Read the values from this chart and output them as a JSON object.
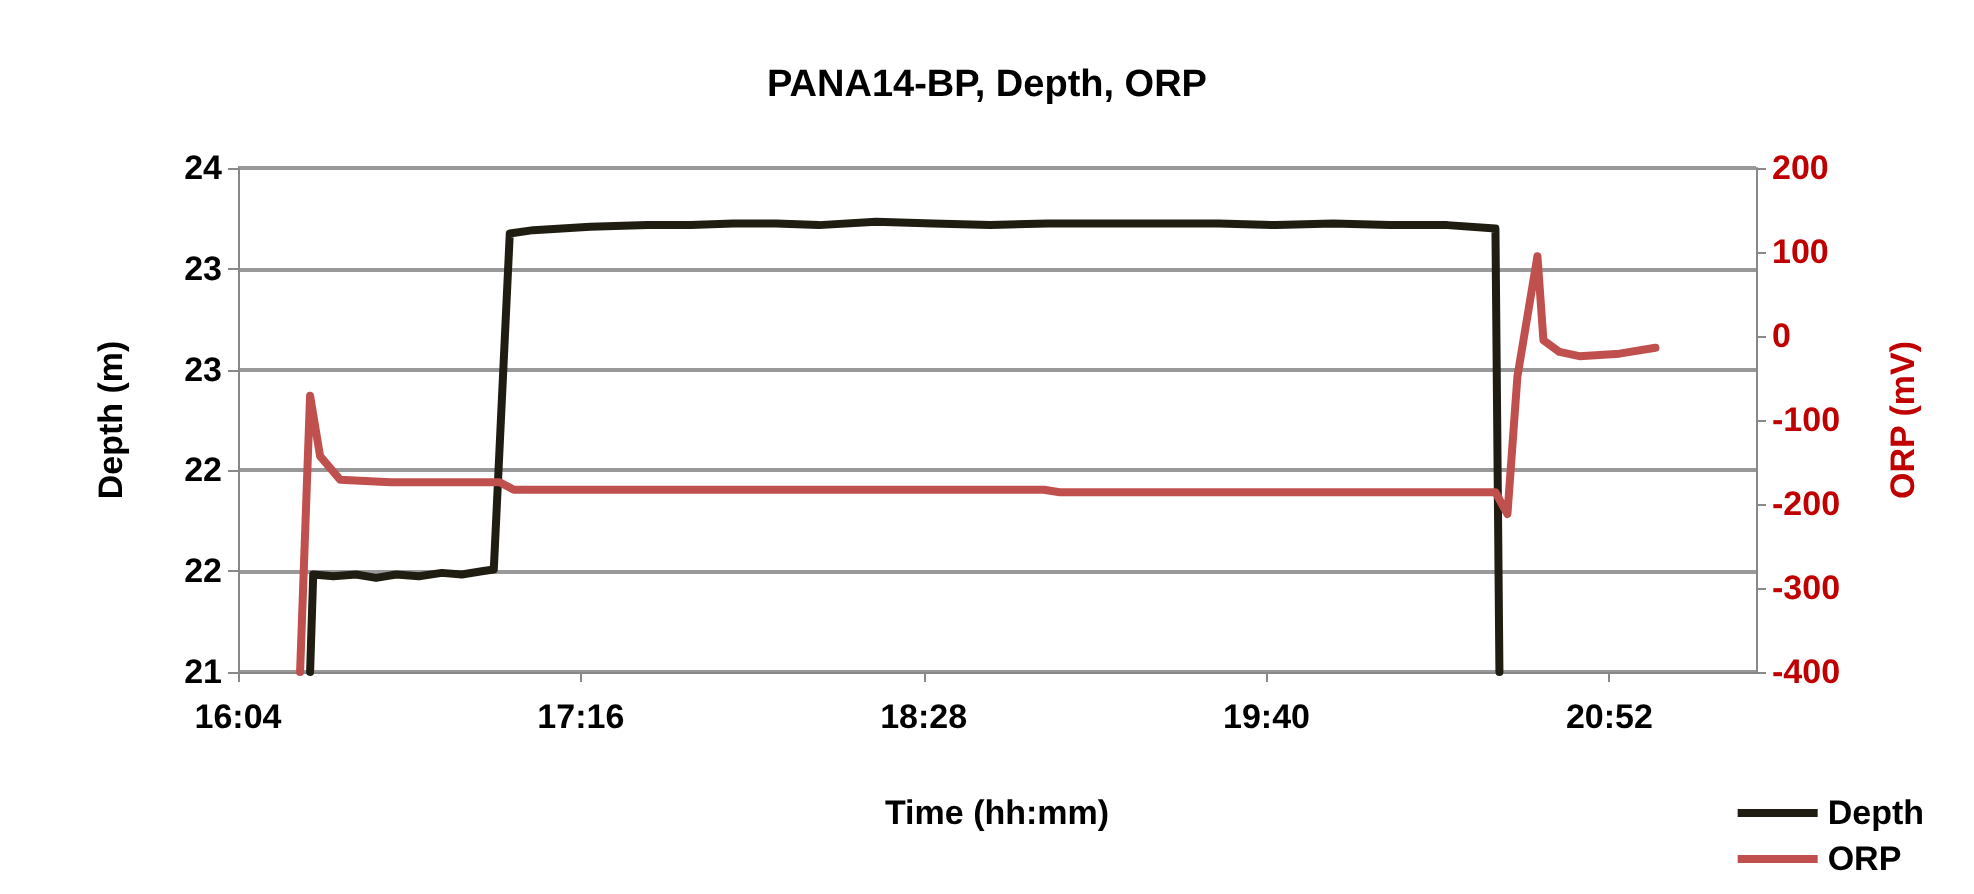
{
  "chart_data": {
    "type": "line",
    "title": "PANA14-BP, Depth, ORP",
    "xlabel": "Time (hh:mm)",
    "ylabel": "Depth (m)",
    "y2label": "ORP (mV)",
    "xlim": [
      16.0667,
      21.38
    ],
    "xticks": [
      {
        "value": 16.0667,
        "label": "16:04"
      },
      {
        "value": 17.2667,
        "label": "17:16"
      },
      {
        "value": 18.4667,
        "label": "18:28"
      },
      {
        "value": 19.6667,
        "label": "19:40"
      },
      {
        "value": 20.8667,
        "label": "20:52"
      }
    ],
    "ylim": [
      21,
      24
    ],
    "yticks": [
      {
        "value": 21,
        "label": "21"
      },
      {
        "value": 21.6,
        "label": "22"
      },
      {
        "value": 22.2,
        "label": "22"
      },
      {
        "value": 22.8,
        "label": "23"
      },
      {
        "value": 23.4,
        "label": "23"
      },
      {
        "value": 24,
        "label": "24"
      }
    ],
    "y2lim": [
      -400,
      200
    ],
    "y2ticks": [
      -400,
      -300,
      -200,
      -100,
      0,
      100,
      200
    ],
    "grid": "y",
    "legend": "bottom right",
    "marker": "none",
    "line_style": "solid",
    "series": [
      {
        "name": "Depth",
        "color": "#1f1c12",
        "x": [
          16.319,
          16.33,
          16.4,
          16.48,
          16.55,
          16.62,
          16.7,
          16.78,
          16.85,
          16.92,
          16.962,
          17.018,
          17.1,
          17.3,
          17.5,
          17.65,
          17.8,
          17.95,
          18.1,
          18.3,
          18.5,
          18.7,
          18.9,
          19.1,
          19.3,
          19.5,
          19.7,
          19.9,
          20.1,
          20.3,
          20.468,
          20.482
        ],
        "values": [
          21,
          21.58,
          21.57,
          21.58,
          21.56,
          21.58,
          21.57,
          21.59,
          21.58,
          21.6,
          21.61,
          23.61,
          23.63,
          23.65,
          23.66,
          23.66,
          23.67,
          23.67,
          23.66,
          23.68,
          23.67,
          23.66,
          23.67,
          23.67,
          23.67,
          23.67,
          23.66,
          23.67,
          23.66,
          23.66,
          23.64,
          21
        ]
      },
      {
        "name": "ORP",
        "color": "#c0504d",
        "axis": "y2",
        "x": [
          16.284,
          16.319,
          16.354,
          16.424,
          16.6,
          16.983,
          17.032,
          18.887,
          18.943,
          20.468,
          20.51,
          20.545,
          20.615,
          20.636,
          20.692,
          20.762,
          20.902,
          21.028
        ],
        "values": [
          -400,
          -71,
          -143,
          -171,
          -174,
          -174,
          -183,
          -183,
          -186,
          -186,
          -212,
          -48,
          95,
          -5,
          -19,
          -24,
          -21,
          -14
        ]
      }
    ]
  }
}
